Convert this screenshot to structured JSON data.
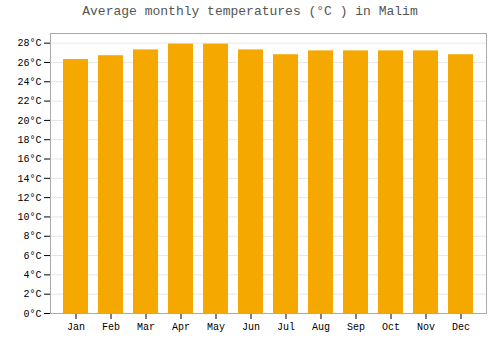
{
  "chart_data": {
    "type": "bar",
    "title": "Average monthly temperatures (°C ) in Malim",
    "categories": [
      "Jan",
      "Feb",
      "Mar",
      "Apr",
      "May",
      "Jun",
      "Jul",
      "Aug",
      "Sep",
      "Oct",
      "Nov",
      "Dec"
    ],
    "values": [
      26.3,
      26.7,
      27.3,
      27.9,
      27.9,
      27.3,
      26.8,
      27.2,
      27.2,
      27.2,
      27.2,
      26.8
    ],
    "color": "#F5A800",
    "ylim": [
      0,
      29
    ],
    "yticks": [
      {
        "value": 0,
        "label": "0°C"
      },
      {
        "value": 2,
        "label": "2°C"
      },
      {
        "value": 4,
        "label": "4°C"
      },
      {
        "value": 6,
        "label": "6°C"
      },
      {
        "value": 8,
        "label": "8°C"
      },
      {
        "value": 10,
        "label": "10°C"
      },
      {
        "value": 12,
        "label": "12°C"
      },
      {
        "value": 14,
        "label": "14°C"
      },
      {
        "value": 16,
        "label": "16°C"
      },
      {
        "value": 18,
        "label": "18°C"
      },
      {
        "value": 20,
        "label": "20°C"
      },
      {
        "value": 22,
        "label": "22°C"
      },
      {
        "value": 24,
        "label": "24°C"
      },
      {
        "value": 26,
        "label": "26°C"
      },
      {
        "value": 28,
        "label": "28°C"
      }
    ],
    "grid": true
  }
}
